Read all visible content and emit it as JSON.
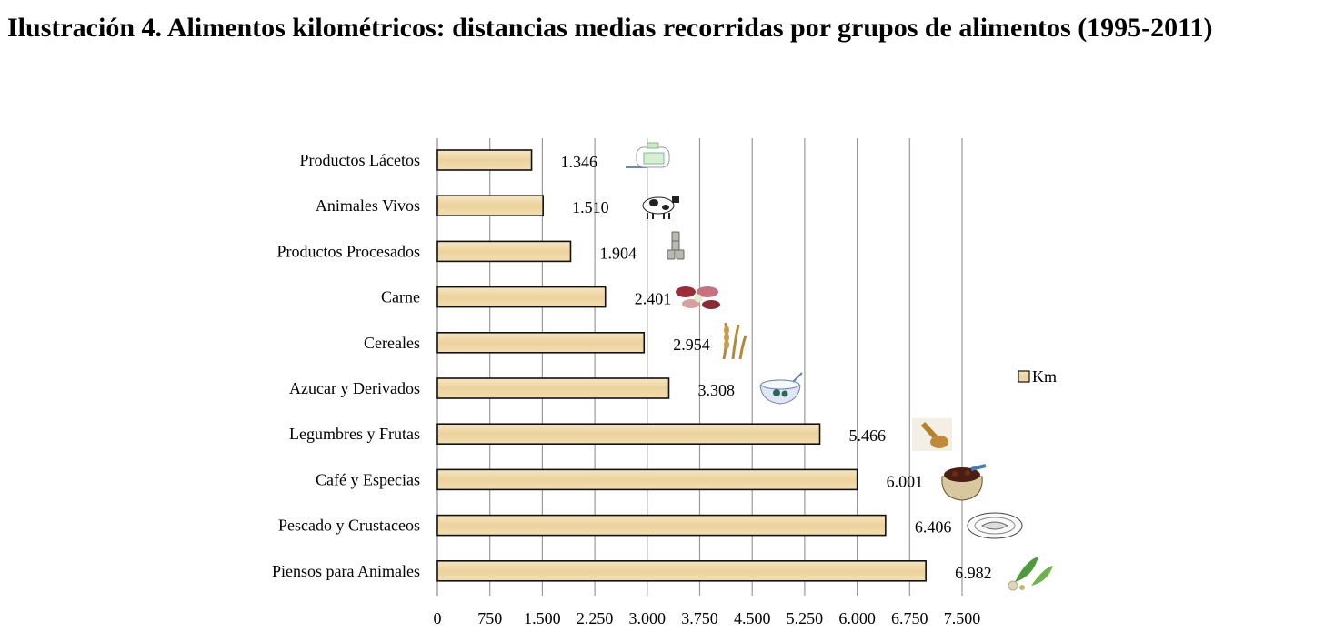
{
  "page": {
    "title": "Ilustración 4. Alimentos kilométricos: distancias medias recorridas por grupos de alimentos (1995-2011)"
  },
  "chart_data": {
    "type": "bar",
    "orientation": "horizontal",
    "title": "Ilustración 4. Alimentos kilométricos: distancias medias recorridas por grupos de alimentos (1995-2011)",
    "categories": [
      "Productos Lácetos",
      "Animales Vivos",
      "Productos Procesados",
      "Carne",
      "Cereales",
      "Azucar y Derivados",
      "Legumbres y Frutas",
      "Café y Especias",
      "Pescado y Crustaceos",
      "Piensos para Animales"
    ],
    "values": [
      1346,
      1510,
      1904,
      2401,
      2954,
      3308,
      5466,
      6001,
      6406,
      6982
    ],
    "value_labels": [
      "1.346",
      "1.510",
      "1.904",
      "2.401",
      "2.954",
      "3.308",
      "5.466",
      "6.001",
      "6.406",
      "6.982"
    ],
    "icons": [
      "milk-carton-icon",
      "cow-icon",
      "cans-icon",
      "meat-icon",
      "wheat-icon",
      "sugar-bowl-icon",
      "seed-scoop-icon",
      "coffee-sack-icon",
      "fish-plate-icon",
      "herbs-icon"
    ],
    "xlim": [
      0,
      7500
    ],
    "xticks": [
      0,
      750,
      1500,
      2250,
      3000,
      3750,
      4500,
      5250,
      6000,
      6750,
      7500
    ],
    "xtick_labels": [
      "0",
      "750",
      "1.500",
      "2.250",
      "3.000",
      "3.750",
      "4.500",
      "5.250",
      "6.000",
      "6.750",
      "7.500"
    ],
    "grid": true,
    "legend": {
      "entries": [
        "Km"
      ],
      "position": "right"
    },
    "bar_color": "#f0d9a8",
    "xlabel": "",
    "ylabel": ""
  }
}
